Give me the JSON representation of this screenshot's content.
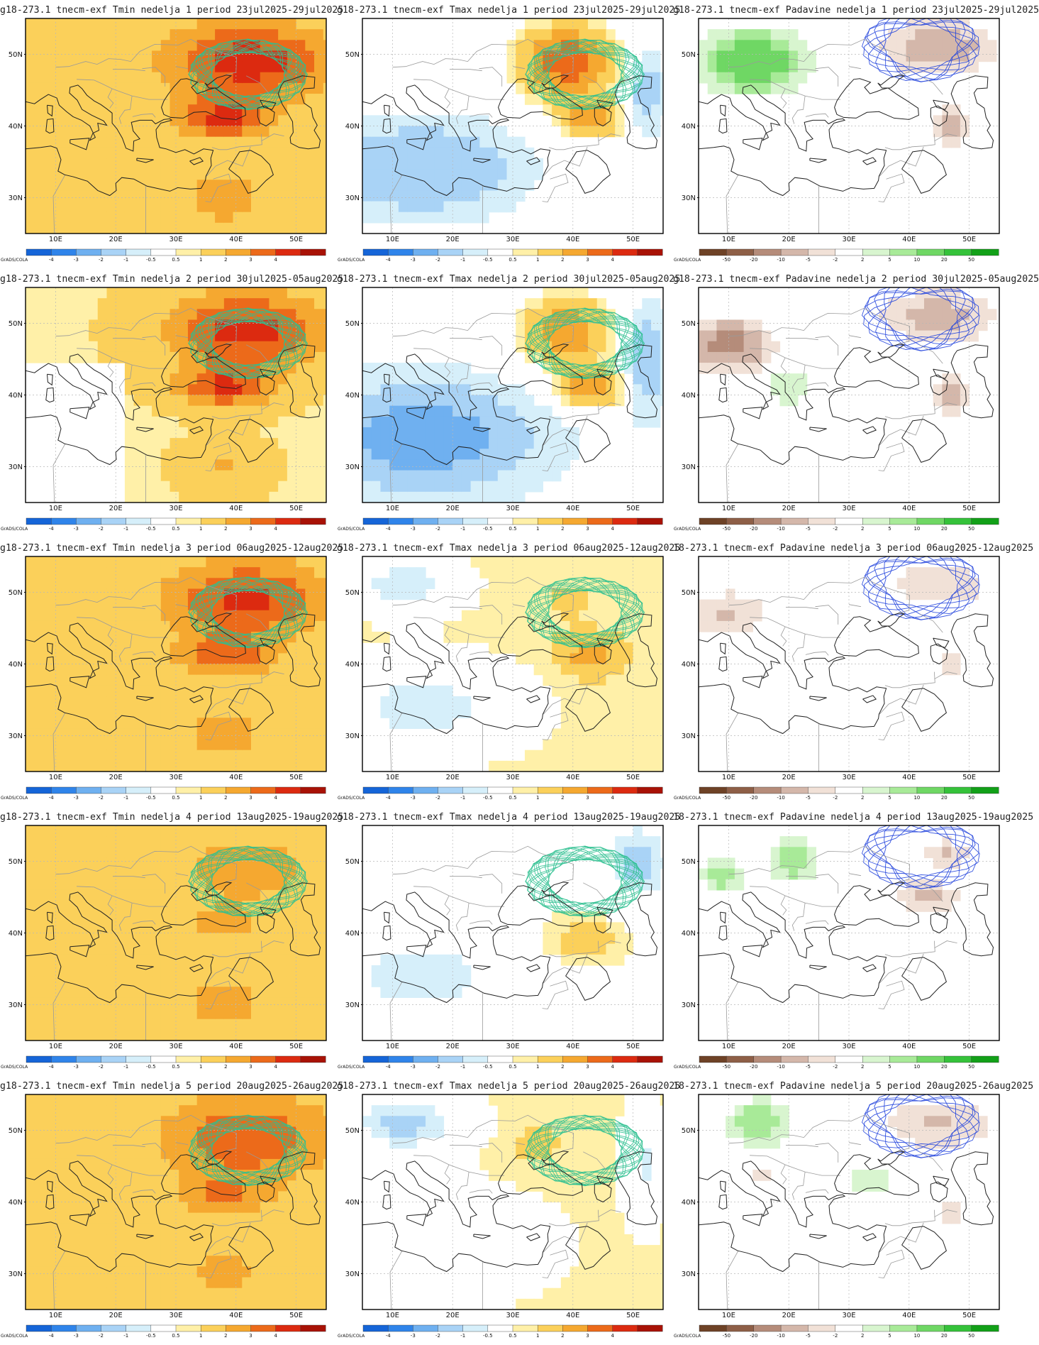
{
  "colors": {
    "temp_scale": [
      "#1565d8",
      "#2f84ea",
      "#6fb0f0",
      "#a9d3f6",
      "#d6effa",
      "#ffffff",
      "#fff0a8",
      "#fbd05a",
      "#f5a830",
      "#ec6a1a",
      "#dc2a10",
      "#a81206"
    ],
    "precip_scale": [
      "#6e4226",
      "#8e5f47",
      "#b58c7a",
      "#d4b7aa",
      "#f1e1d7",
      "#ffffff",
      "#d8f5cf",
      "#a8ea98",
      "#6fd764",
      "#35c23a",
      "#12a018"
    ],
    "temp_contour": "#2ec090",
    "precip_contour": "#2244dd",
    "coast": "#222222",
    "border": "#9a9a9a"
  },
  "credit": "GrADS/COLA",
  "map": {
    "lat_labels": [
      "50N",
      "40N",
      "30N"
    ],
    "lon_labels": [
      "10E",
      "20E",
      "30E",
      "40E",
      "50E"
    ]
  },
  "colorbars": {
    "temp": [
      "-4",
      "-3",
      "-2",
      "-1",
      "-0.5",
      "0.5",
      "1",
      "2",
      "3",
      "4"
    ],
    "precip": [
      "-50",
      "-20",
      "-10",
      "-5",
      "-2",
      "2",
      "5",
      "10",
      "20",
      "50"
    ]
  },
  "panels": [
    {
      "title": "g18-273.1  tnecm-exf  Tmin  nedelja 1  period 23jul2025-29jul2025",
      "var": "tmin",
      "week": 1
    },
    {
      "title": "g18-273.1  tnecm-exf  Tmax  nedelja 1  period 23jul2025-29jul2025",
      "var": "tmax",
      "week": 1
    },
    {
      "title": "g18-273.1  tnecm-exf  Padavine  nedelja 1  period 23jul2025-29jul2025",
      "var": "precip",
      "week": 1
    },
    {
      "title": "g18-273.1  tnecm-exf  Tmin  nedelja 2  period 30jul2025-05aug2025",
      "var": "tmin",
      "week": 2
    },
    {
      "title": "g18-273.1  tnecm-exf  Tmax  nedelja 2  period 30jul2025-05aug2025",
      "var": "tmax",
      "week": 2
    },
    {
      "title": "g18-273.1  tnecm-exf  Padavine  nedelja 2  period 30jul2025-05aug2025",
      "var": "precip",
      "week": 2
    },
    {
      "title": "g18-273.1  tnecm-exf  Tmin  nedelja 3  period 06aug2025-12aug2025",
      "var": "tmin",
      "week": 3
    },
    {
      "title": "g18-273.1  tnecm-exf  Tmax  nedelja 3  period 06aug2025-12aug2025",
      "var": "tmax",
      "week": 3
    },
    {
      "title": "18-273.1  tnecm-exf  Padavine  nedelja 3  period 06aug2025-12aug2025",
      "var": "precip",
      "week": 3
    },
    {
      "title": "g18-273.1  tnecm-exf  Tmin  nedelja 4  period 13aug2025-19aug2025",
      "var": "tmin",
      "week": 4
    },
    {
      "title": "g18-273.1  tnecm-exf  Tmax  nedelja 4  period 13aug2025-19aug2025",
      "var": "tmax",
      "week": 4
    },
    {
      "title": "18-273.1  tnecm-exf  Padavine  nedelja 4  period 13aug2025-19aug2025",
      "var": "precip",
      "week": 4
    },
    {
      "title": "g18-273.1  tnecm-exf  Tmin  nedelja 5  period 20aug2025-26aug2025",
      "var": "tmin",
      "week": 5
    },
    {
      "title": "g18-273.1  tnecm-exf  Tmax  nedelja 5  period 20aug2025-26aug2025",
      "var": "tmax",
      "week": 5
    },
    {
      "title": "18-273.1  tnecm-exf  Padavine  nedelja 5  period 20aug2025-26aug2025",
      "var": "precip",
      "week": 5
    }
  ]
}
